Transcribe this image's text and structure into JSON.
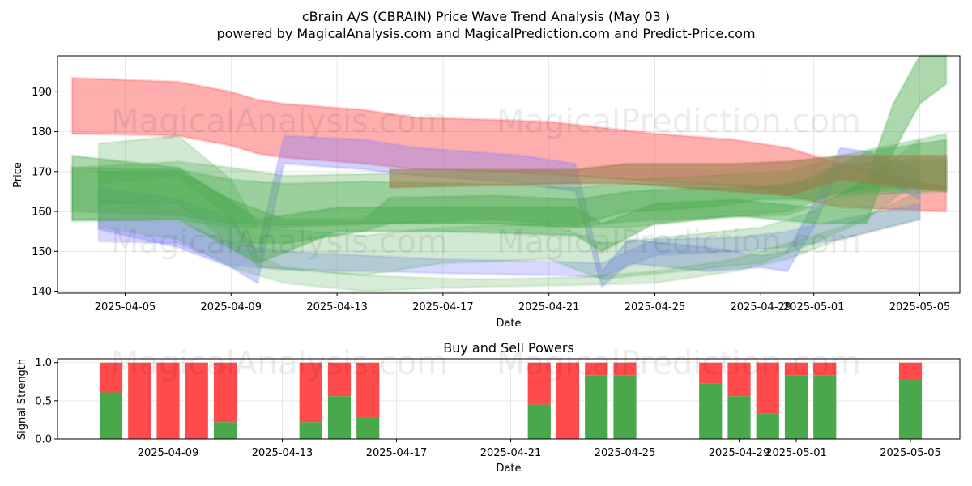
{
  "title_line1": "cBrain A/S (CBRAIN) Price Wave Trend Analysis (May 03 )",
  "title_line2": "powered by MagicalAnalysis.com and MagicalPrediction.com and Predict-Price.com",
  "watermarks": [
    "MagicalAnalysis.com",
    "MagicalPrediction.com"
  ],
  "colors": {
    "red": "#ff4b4b",
    "green": "#49a84b",
    "blue": "#7b7bff",
    "brown": "#9b7b4b"
  },
  "chart_data": [
    {
      "type": "area",
      "xlabel": "Date",
      "ylabel": "Price",
      "ylim": [
        139.5,
        199
      ],
      "yticks": [
        140,
        150,
        160,
        170,
        180,
        190
      ],
      "xticks": [
        "2025-04-05",
        "2025-04-09",
        "2025-04-13",
        "2025-04-17",
        "2025-04-21",
        "2025-04-25",
        "2025-04-29",
        "2025-05-01",
        "2025-05-05"
      ],
      "grid": true,
      "bands": [
        {
          "color": "red",
          "opacity": 0.45,
          "points": [
            [
              "2025-04-03",
              193.5,
              179.5
            ],
            [
              "2025-04-07",
              192.5,
              179
            ],
            [
              "2025-04-09",
              190,
              176.5
            ],
            [
              "2025-04-10",
              188,
              174.5
            ],
            [
              "2025-04-11",
              187,
              173.5
            ],
            [
              "2025-04-14",
              185.5,
              172
            ],
            [
              "2025-04-16",
              183.5,
              170.5
            ],
            [
              "2025-04-19",
              183,
              170
            ],
            [
              "2025-04-21",
              182.5,
              169.5
            ],
            [
              "2025-04-23",
              181,
              168.5
            ],
            [
              "2025-04-25",
              179.5,
              167.5
            ],
            [
              "2025-04-28",
              178,
              166.5
            ],
            [
              "2025-04-30",
              176,
              164
            ],
            [
              "2025-05-02",
              172,
              161
            ],
            [
              "2025-05-06",
              166,
              160
            ]
          ]
        },
        {
          "color": "blue",
          "opacity": 0.35,
          "points": [
            [
              "2025-04-04",
              166,
              155.5
            ],
            [
              "2025-04-07",
              163,
              151
            ],
            [
              "2025-04-09",
              158,
              146
            ],
            [
              "2025-04-10",
              150,
              142
            ],
            [
              "2025-04-11",
              179,
              172
            ],
            [
              "2025-04-14",
              178,
              170.5
            ],
            [
              "2025-04-16",
              176,
              169
            ],
            [
              "2025-04-20",
              174,
              167
            ],
            [
              "2025-04-22",
              172,
              165
            ],
            [
              "2025-04-23",
              145,
              141
            ],
            [
              "2025-04-24",
              153,
              147
            ],
            [
              "2025-04-27",
              151,
              145
            ],
            [
              "2025-04-29",
              149,
              146
            ],
            [
              "2025-04-30",
              150,
              145
            ],
            [
              "2025-05-01",
              162,
              156
            ],
            [
              "2025-05-02",
              176,
              171
            ],
            [
              "2025-05-03",
              175,
              170
            ],
            [
              "2025-05-05",
              170,
              163
            ]
          ]
        },
        {
          "color": "blue",
          "opacity": 0.3,
          "points": [
            [
              "2025-04-04",
              158,
              152.5
            ],
            [
              "2025-04-07",
              157.5,
              152
            ],
            [
              "2025-04-09",
              152,
              146.5
            ],
            [
              "2025-04-11",
              150,
              145.5
            ],
            [
              "2025-04-14",
              149,
              145
            ],
            [
              "2025-04-17",
              148,
              144.5
            ],
            [
              "2025-04-21",
              147.5,
              144
            ],
            [
              "2025-04-23",
              147,
              143.5
            ],
            [
              "2025-04-25",
              153,
              149
            ],
            [
              "2025-04-28",
              153.5,
              150
            ],
            [
              "2025-04-30",
              155,
              151
            ],
            [
              "2025-05-02",
              158,
              153
            ],
            [
              "2025-05-05",
              162,
              158
            ]
          ]
        },
        {
          "color": "green",
          "opacity": 0.3,
          "points": [
            [
              "2025-04-03",
              171,
              157.5
            ],
            [
              "2025-04-07",
              172.5,
              158
            ],
            [
              "2025-04-09",
              171,
              156
            ],
            [
              "2025-04-11",
              169,
              156
            ],
            [
              "2025-04-15",
              169.5,
              157
            ],
            [
              "2025-04-19",
              170,
              157
            ],
            [
              "2025-04-22",
              169,
              156
            ],
            [
              "2025-04-24",
              168,
              156
            ],
            [
              "2025-04-27",
              169,
              158
            ],
            [
              "2025-04-30",
              170,
              160
            ],
            [
              "2025-05-02",
              174,
              165
            ],
            [
              "2025-05-06",
              179.5,
              165.5
            ]
          ]
        },
        {
          "color": "green",
          "opacity": 0.35,
          "points": [
            [
              "2025-04-03",
              171,
              160
            ],
            [
              "2025-04-07",
              170.5,
              159
            ],
            [
              "2025-04-09",
              168,
              157
            ],
            [
              "2025-04-11",
              167,
              156.5
            ],
            [
              "2025-04-14",
              167.5,
              157
            ],
            [
              "2025-04-18",
              167,
              157
            ],
            [
              "2025-04-22",
              166,
              156
            ],
            [
              "2025-04-24",
              167,
              157.5
            ],
            [
              "2025-04-27",
              167,
              158.5
            ],
            [
              "2025-04-30",
              166,
              159
            ],
            [
              "2025-05-02",
              172,
              164
            ],
            [
              "2025-05-06",
              173,
              165
            ]
          ]
        },
        {
          "color": "green",
          "opacity": 0.25,
          "points": [
            [
              "2025-04-04",
              177,
              167
            ],
            [
              "2025-04-07",
              179,
              169
            ],
            [
              "2025-04-09",
              168,
              158
            ],
            [
              "2025-04-10",
              156,
              146
            ],
            [
              "2025-04-14",
              154,
              144
            ],
            [
              "2025-04-17",
              156,
              147
            ],
            [
              "2025-04-21",
              157,
              148
            ],
            [
              "2025-04-23",
              152,
              143
            ],
            [
              "2025-04-26",
              154,
              145
            ],
            [
              "2025-04-29",
              156,
              147
            ],
            [
              "2025-05-01",
              160,
              152
            ],
            [
              "2025-05-03",
              168,
              158
            ],
            [
              "2025-05-05",
              178,
              168
            ]
          ]
        },
        {
          "color": "green",
          "opacity": 0.22,
          "points": [
            [
              "2025-04-04",
              163,
              156
            ],
            [
              "2025-04-07",
              161,
              153
            ],
            [
              "2025-04-09",
              152,
              146
            ],
            [
              "2025-04-11",
              146,
              142
            ],
            [
              "2025-04-14",
              144,
              140
            ],
            [
              "2025-04-18",
              143,
              141
            ],
            [
              "2025-04-22",
              143.5,
              141.5
            ],
            [
              "2025-04-25",
              145,
              142
            ],
            [
              "2025-04-28",
              148,
              145
            ],
            [
              "2025-04-30",
              152,
              148
            ],
            [
              "2025-05-02",
              156,
              153
            ],
            [
              "2025-05-05",
              165,
              158
            ]
          ]
        },
        {
          "color": "green",
          "opacity": 0.4,
          "points": [
            [
              "2025-04-04",
              170,
              162
            ],
            [
              "2025-04-07",
              170,
              162
            ],
            [
              "2025-04-09",
              163,
              152
            ],
            [
              "2025-04-11",
              158,
              152
            ],
            [
              "2025-04-14",
              158,
              155
            ],
            [
              "2025-04-15",
              163.5,
              157
            ],
            [
              "2025-04-19",
              164,
              158
            ],
            [
              "2025-04-22",
              163,
              156.5
            ],
            [
              "2025-04-24",
              165,
              160
            ],
            [
              "2025-04-27",
              166,
              161
            ],
            [
              "2025-04-29",
              166,
              163
            ],
            [
              "2025-05-01",
              168,
              163
            ],
            [
              "2025-05-03",
              175,
              166
            ],
            [
              "2025-05-06",
              178,
              166
            ]
          ]
        },
        {
          "color": "green",
          "opacity": 0.45,
          "points": [
            [
              "2025-04-03",
              174,
              158
            ],
            [
              "2025-04-07",
              171,
              158
            ],
            [
              "2025-04-10",
              158,
              147
            ],
            [
              "2025-04-13",
              161,
              155
            ],
            [
              "2025-04-17",
              161,
              155
            ],
            [
              "2025-04-22",
              161,
              154
            ],
            [
              "2025-04-23",
              157,
              150
            ],
            [
              "2025-04-25",
              162,
              157
            ],
            [
              "2025-04-28",
              163,
              159
            ],
            [
              "2025-05-01",
              161,
              157
            ],
            [
              "2025-05-03",
              168,
              157
            ],
            [
              "2025-05-04",
              187,
              175
            ],
            [
              "2025-05-05",
              199,
              187
            ],
            [
              "2025-05-06",
              199,
              192
            ]
          ]
        },
        {
          "color": "brown",
          "opacity": 0.6,
          "points": [
            [
              "2025-04-15",
              170.5,
              166
            ],
            [
              "2025-04-22",
              170.5,
              167
            ],
            [
              "2025-04-24",
              172,
              167
            ],
            [
              "2025-04-28",
              172,
              165
            ],
            [
              "2025-04-30",
              172.5,
              164
            ],
            [
              "2025-05-02",
              174,
              168
            ],
            [
              "2025-05-06",
              174,
              165
            ]
          ]
        }
      ]
    },
    {
      "type": "bar",
      "title": "Buy and Sell Powers",
      "xlabel": "Date",
      "ylabel": "Signal Strength",
      "ylim": [
        0,
        1.05
      ],
      "yticks": [
        "0.0",
        "0.5",
        "1.0"
      ],
      "xticks": [
        "2025-04-09",
        "2025-04-13",
        "2025-04-17",
        "2025-04-21",
        "2025-04-25",
        "2025-04-29",
        "2025-05-01",
        "2025-05-05"
      ],
      "grid": true,
      "series": [
        {
          "name": "Buy"
        },
        {
          "name": "Sell"
        }
      ],
      "bars": [
        {
          "date": "2025-04-07",
          "buy": 0.61
        },
        {
          "date": "2025-04-08",
          "buy": 0.0
        },
        {
          "date": "2025-04-09",
          "buy": 0.0
        },
        {
          "date": "2025-04-10",
          "buy": 0.0
        },
        {
          "date": "2025-04-11",
          "buy": 0.22
        },
        {
          "date": "2025-04-14",
          "buy": 0.22
        },
        {
          "date": "2025-04-15",
          "buy": 0.56
        },
        {
          "date": "2025-04-16",
          "buy": 0.28
        },
        {
          "date": "2025-04-22",
          "buy": 0.45
        },
        {
          "date": "2025-04-23",
          "buy": 0.0
        },
        {
          "date": "2025-04-24",
          "buy": 0.83
        },
        {
          "date": "2025-04-25",
          "buy": 0.83
        },
        {
          "date": "2025-04-28",
          "buy": 0.73
        },
        {
          "date": "2025-04-29",
          "buy": 0.56
        },
        {
          "date": "2025-04-30",
          "buy": 0.33
        },
        {
          "date": "2025-05-01",
          "buy": 0.83
        },
        {
          "date": "2025-05-02",
          "buy": 0.83
        },
        {
          "date": "2025-05-05",
          "buy": 0.78
        }
      ]
    }
  ]
}
